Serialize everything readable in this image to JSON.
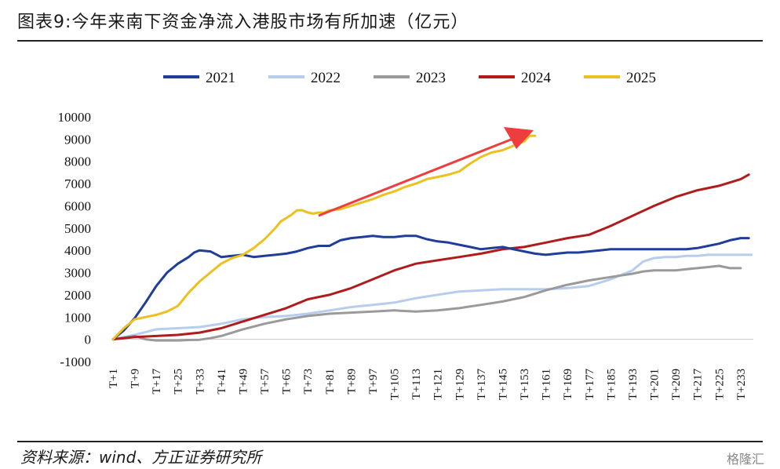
{
  "header": {
    "title": "图表9:今年来南下资金净流入港股市场有所加速（亿元）"
  },
  "footer": {
    "source": "资料来源：wind、方正证券研究所",
    "watermark": "格隆汇"
  },
  "colors": {
    "2021": "#1f3d99",
    "2022": "#b7cdee",
    "2023": "#9a9a9a",
    "2024": "#b01c1c",
    "2025": "#ecc01e",
    "arrow": "#ee3d3d"
  },
  "chart_data": {
    "type": "line",
    "legend_position": "top-center",
    "grid": false,
    "ylim": [
      -1000,
      10000
    ],
    "yticks": [
      -1000,
      0,
      1000,
      2000,
      3000,
      4000,
      5000,
      6000,
      7000,
      8000,
      9000,
      10000
    ],
    "xlim": [
      1,
      240
    ],
    "xticks": [
      "T+1",
      "T+9",
      "T+17",
      "T+25",
      "T+33",
      "T+41",
      "T+49",
      "T+57",
      "T+65",
      "T+73",
      "T+81",
      "T+89",
      "T+97",
      "T+105",
      "T+113",
      "T+121",
      "T+129",
      "T+137",
      "T+145",
      "T+153",
      "T+161",
      "T+169",
      "T+177",
      "T+185",
      "T+193",
      "T+201",
      "T+209",
      "T+217",
      "T+225",
      "T+233"
    ],
    "series": [
      {
        "name": "2021",
        "x": [
          1,
          5,
          9,
          13,
          17,
          21,
          25,
          29,
          31,
          33,
          37,
          41,
          45,
          49,
          53,
          57,
          61,
          65,
          69,
          73,
          77,
          81,
          85,
          89,
          93,
          97,
          101,
          105,
          109,
          113,
          117,
          121,
          125,
          129,
          133,
          137,
          141,
          145,
          149,
          153,
          157,
          161,
          165,
          169,
          173,
          177,
          181,
          185,
          189,
          193,
          197,
          201,
          205,
          209,
          213,
          217,
          221,
          225,
          229,
          233,
          236
        ],
        "y": [
          0,
          400,
          950,
          1650,
          2400,
          3000,
          3400,
          3700,
          3900,
          4000,
          3950,
          3700,
          3750,
          3800,
          3700,
          3750,
          3800,
          3850,
          3950,
          4100,
          4200,
          4200,
          4450,
          4550,
          4600,
          4650,
          4600,
          4600,
          4650,
          4650,
          4500,
          4400,
          4350,
          4250,
          4150,
          4050,
          4100,
          4150,
          4050,
          3950,
          3850,
          3800,
          3850,
          3900,
          3900,
          3950,
          4000,
          4050,
          4050,
          4050,
          4050,
          4050,
          4050,
          4050,
          4050,
          4100,
          4200,
          4300,
          4450,
          4550,
          4550
        ]
      },
      {
        "name": "2022",
        "x": [
          1,
          9,
          17,
          25,
          33,
          41,
          49,
          57,
          65,
          73,
          81,
          89,
          97,
          105,
          113,
          121,
          129,
          137,
          145,
          153,
          161,
          169,
          177,
          185,
          193,
          197,
          201,
          205,
          209,
          213,
          217,
          221,
          225,
          229,
          233,
          237
        ],
        "y": [
          0,
          200,
          450,
          500,
          550,
          700,
          900,
          1000,
          1050,
          1150,
          1300,
          1450,
          1550,
          1650,
          1850,
          2000,
          2150,
          2200,
          2250,
          2250,
          2250,
          2300,
          2400,
          2700,
          3100,
          3500,
          3650,
          3700,
          3700,
          3750,
          3750,
          3800,
          3800,
          3800,
          3800,
          3800
        ]
      },
      {
        "name": "2023",
        "x": [
          1,
          9,
          13,
          17,
          21,
          25,
          29,
          33,
          37,
          41,
          49,
          57,
          65,
          73,
          81,
          89,
          97,
          105,
          113,
          121,
          129,
          137,
          145,
          153,
          161,
          169,
          177,
          185,
          193,
          197,
          201,
          205,
          209,
          213,
          217,
          221,
          225,
          229,
          233
        ],
        "y": [
          0,
          150,
          0,
          -50,
          -50,
          -50,
          -30,
          -20,
          50,
          150,
          450,
          700,
          900,
          1050,
          1150,
          1200,
          1250,
          1300,
          1250,
          1300,
          1400,
          1550,
          1700,
          1900,
          2200,
          2450,
          2650,
          2800,
          2950,
          3050,
          3100,
          3100,
          3100,
          3150,
          3200,
          3250,
          3300,
          3200,
          3200
        ]
      },
      {
        "name": "2024",
        "x": [
          1,
          9,
          17,
          25,
          33,
          41,
          49,
          57,
          65,
          73,
          81,
          89,
          97,
          105,
          113,
          121,
          129,
          137,
          145,
          153,
          161,
          169,
          177,
          185,
          193,
          201,
          209,
          217,
          225,
          233,
          236
        ],
        "y": [
          0,
          100,
          150,
          200,
          300,
          500,
          800,
          1100,
          1400,
          1800,
          2000,
          2300,
          2700,
          3100,
          3400,
          3550,
          3700,
          3850,
          4050,
          4150,
          4350,
          4550,
          4700,
          5100,
          5550,
          6000,
          6400,
          6700,
          6900,
          7200,
          7400
        ]
      },
      {
        "name": "2025",
        "x": [
          1,
          5,
          9,
          13,
          17,
          21,
          25,
          29,
          33,
          37,
          41,
          45,
          49,
          53,
          57,
          61,
          63,
          65,
          67,
          69,
          71,
          73,
          75,
          77,
          79,
          81,
          85,
          89,
          93,
          97,
          101,
          105,
          109,
          113,
          117,
          121,
          125,
          129,
          133,
          137,
          141,
          145,
          149,
          153,
          155,
          157
        ],
        "y": [
          0,
          500,
          900,
          1000,
          1100,
          1250,
          1500,
          2100,
          2600,
          3000,
          3400,
          3650,
          3800,
          4100,
          4500,
          5000,
          5300,
          5450,
          5600,
          5800,
          5800,
          5700,
          5650,
          5700,
          5700,
          5800,
          5850,
          6000,
          6150,
          6300,
          6500,
          6650,
          6850,
          7000,
          7200,
          7300,
          7400,
          7550,
          7900,
          8200,
          8400,
          8500,
          8700,
          8900,
          9150,
          9150
        ]
      }
    ]
  }
}
